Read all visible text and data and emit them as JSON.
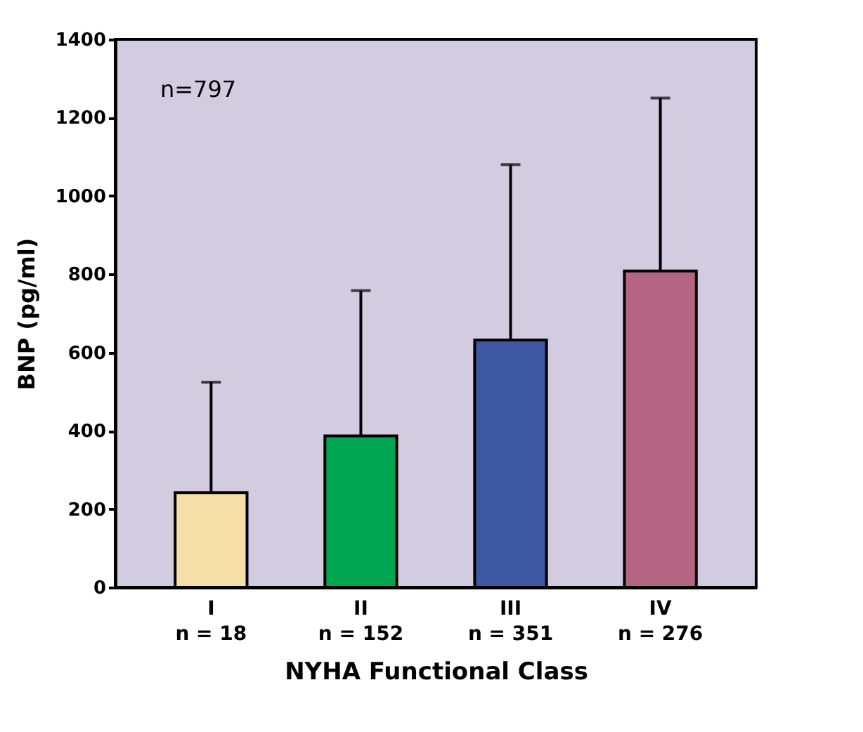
{
  "chart_data": {
    "type": "bar",
    "categories": [
      "I\nn = 18",
      "II\nn = 152",
      "III\nn = 351",
      "IV\nn = 276"
    ],
    "values": [
      242,
      387,
      632,
      808
    ],
    "colors": [
      "#f5dfa6",
      "#00a651",
      "#3d57a3",
      "#b46581"
    ],
    "errors": [
      [
        242,
        524
      ],
      [
        387,
        758
      ],
      [
        632,
        1080
      ],
      [
        808,
        1250
      ]
    ],
    "xlabel": "NYHA Functional Class",
    "ylabel": "BNP (pg/ml)",
    "ylim": [
      0,
      1400
    ],
    "yticks": [
      0,
      200,
      400,
      600,
      800,
      1000,
      1200,
      1400
    ],
    "annotations": [
      "n=797"
    ],
    "grid": false,
    "legend": false
  }
}
